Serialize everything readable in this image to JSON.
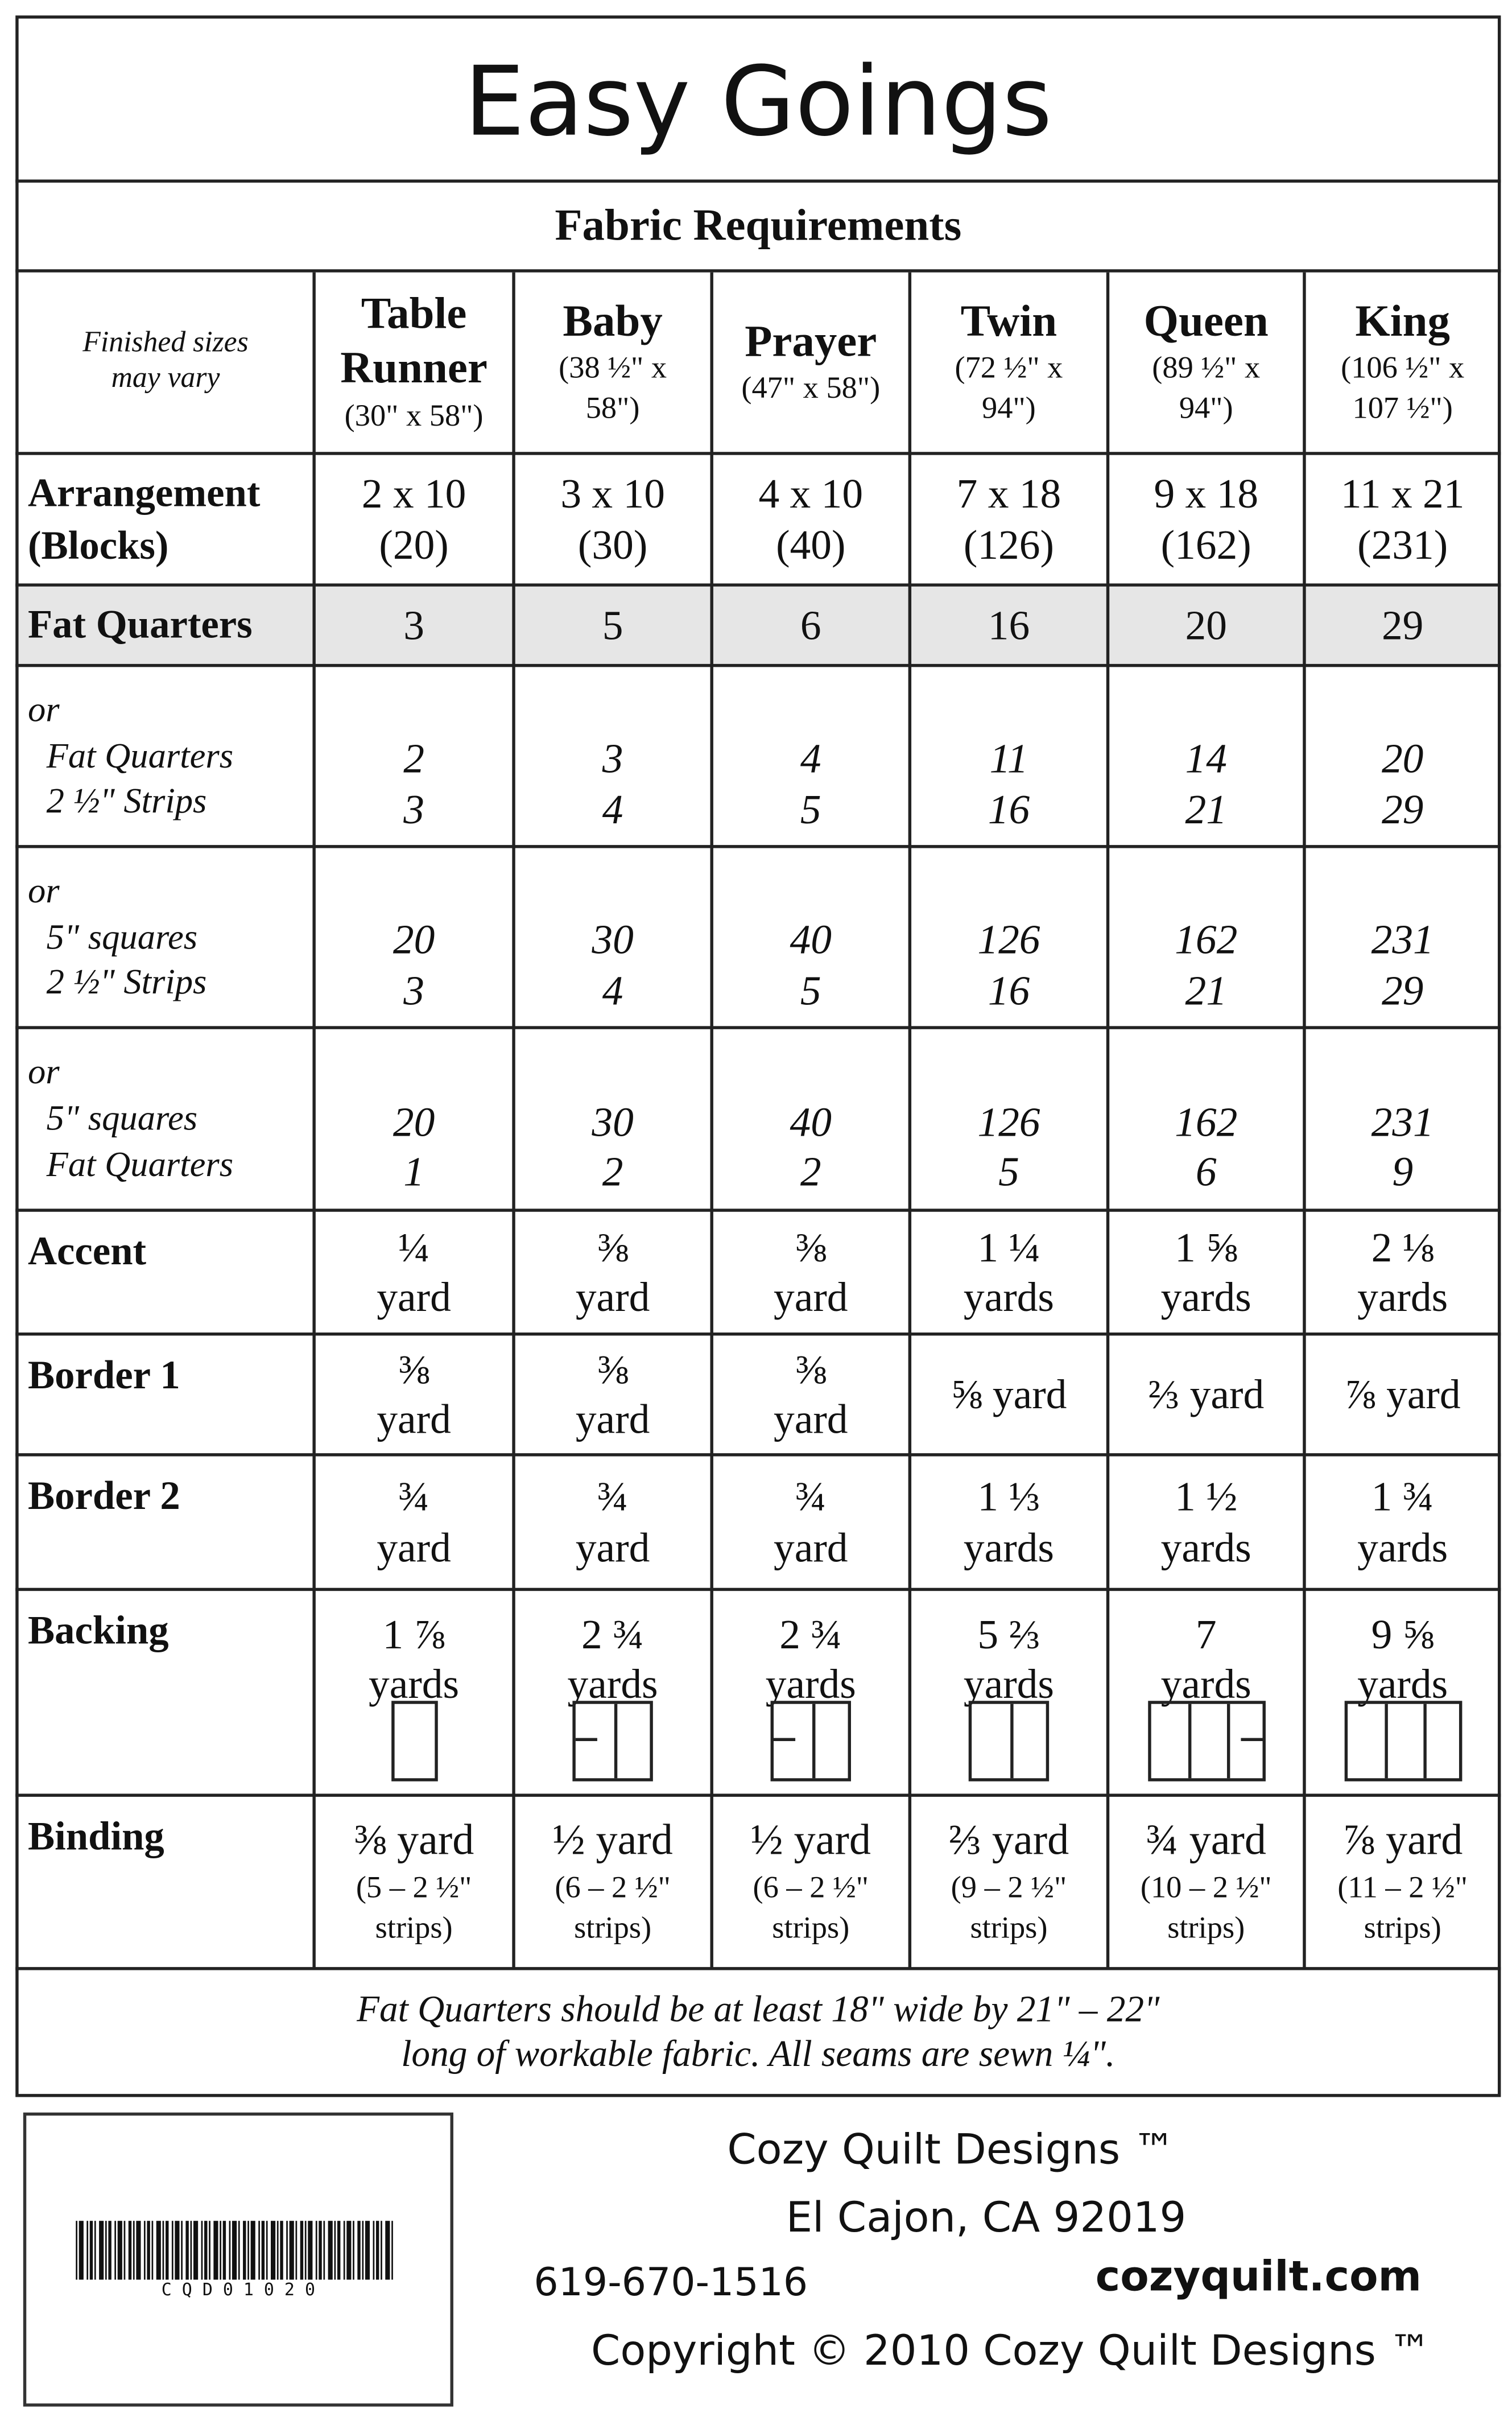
{
  "header": {
    "title": "Easy Goings",
    "subtitle": "Fabric Requirements"
  },
  "table": {
    "note": [
      "Finished sizes",
      "may vary"
    ],
    "columns": [
      {
        "name": [
          "Table",
          "Runner"
        ],
        "size": [
          "(30\" x 58\")"
        ]
      },
      {
        "name": [
          "Baby"
        ],
        "size": [
          "(38 ½\" x",
          "58\")"
        ]
      },
      {
        "name": [
          "Prayer"
        ],
        "size": [
          "(47\" x 58\")"
        ]
      },
      {
        "name": [
          "Twin"
        ],
        "size": [
          "(72 ½\" x",
          "94\")"
        ]
      },
      {
        "name": [
          "Queen"
        ],
        "size": [
          "(89 ½\" x",
          "94\")"
        ]
      },
      {
        "name": [
          "King"
        ],
        "size": [
          "(106 ½\" x",
          "107 ½\")"
        ]
      }
    ],
    "rows": [
      {
        "label": [
          "Arrangement",
          "(Blocks)"
        ],
        "cells": [
          [
            "2 x 10",
            "(20)"
          ],
          [
            "3 x 10",
            "(30)"
          ],
          [
            "4 x 10",
            "(40)"
          ],
          [
            "7 x 18",
            "(126)"
          ],
          [
            "9 x 18",
            "(162)"
          ],
          [
            "11 x 21",
            "(231)"
          ]
        ]
      },
      {
        "label": [
          "Fat Quarters"
        ],
        "cells": [
          [
            "3"
          ],
          [
            "5"
          ],
          [
            "6"
          ],
          [
            "16"
          ],
          [
            "20"
          ],
          [
            "29"
          ]
        ]
      },
      {
        "label": [
          "or",
          "Fat Quarters",
          "2 ½\" Strips"
        ],
        "cells": [
          [
            "2",
            "3"
          ],
          [
            "3",
            "4"
          ],
          [
            "4",
            "5"
          ],
          [
            "11",
            "16"
          ],
          [
            "14",
            "21"
          ],
          [
            "20",
            "29"
          ]
        ]
      },
      {
        "label": [
          "or",
          "5\" squares",
          "2 ½\" Strips"
        ],
        "cells": [
          [
            "20",
            "3"
          ],
          [
            "30",
            "4"
          ],
          [
            "40",
            "5"
          ],
          [
            "126",
            "16"
          ],
          [
            "162",
            "21"
          ],
          [
            "231",
            "29"
          ]
        ]
      },
      {
        "label": [
          "or",
          "5\" squares",
          "Fat Quarters"
        ],
        "cells": [
          [
            "20",
            "1"
          ],
          [
            "30",
            "2"
          ],
          [
            "40",
            "2"
          ],
          [
            "126",
            "5"
          ],
          [
            "162",
            "6"
          ],
          [
            "231",
            "9"
          ]
        ]
      },
      {
        "label": [
          "Accent"
        ],
        "cells": [
          [
            "¼",
            "yard"
          ],
          [
            "⅜",
            "yard"
          ],
          [
            "⅜",
            "yard"
          ],
          [
            "1 ¼",
            "yards"
          ],
          [
            "1 ⅝",
            "yards"
          ],
          [
            "2 ⅛",
            "yards"
          ]
        ]
      },
      {
        "label": [
          "Border 1"
        ],
        "cells": [
          [
            "⅜",
            "yard"
          ],
          [
            "⅜",
            "yard"
          ],
          [
            "⅜",
            "yard"
          ],
          [
            "⅝ yard"
          ],
          [
            "⅔ yard"
          ],
          [
            "⅞ yard"
          ]
        ]
      },
      {
        "label": [
          "Border 2"
        ],
        "cells": [
          [
            "¾",
            "yard"
          ],
          [
            "¾",
            "yard"
          ],
          [
            "¾",
            "yard"
          ],
          [
            "1 ⅓",
            "yards"
          ],
          [
            "1 ½",
            "yards"
          ],
          [
            "1 ¾",
            "yards"
          ]
        ]
      },
      {
        "label": [
          "Backing"
        ],
        "cells": [
          [
            "1 ⅞",
            "yards"
          ],
          [
            "2 ¾",
            "yards"
          ],
          [
            "2 ¾",
            "yards"
          ],
          [
            "5 ⅔",
            "yards"
          ],
          [
            "7",
            "yards"
          ],
          [
            "9 ⅝",
            "yards"
          ]
        ]
      },
      {
        "label": [
          "Binding"
        ],
        "cells": [
          [
            "⅜ yard",
            "(5 – 2 ½\"",
            "strips)"
          ],
          [
            "½ yard",
            "(6 – 2 ½\"",
            "strips)"
          ],
          [
            "½ yard",
            "(6 – 2 ½\"",
            "strips)"
          ],
          [
            "⅔ yard",
            "(9 – 2 ½\"",
            "strips)"
          ],
          [
            "¾ yard",
            "(10 – 2 ½\"",
            "strips)"
          ],
          [
            "⅞ yard",
            "(11 – 2 ½\"",
            "strips)"
          ]
        ]
      }
    ],
    "footnote": [
      "Fat Quarters should be at least 18\" wide by 21\" – 22\"",
      "long of workable fabric. All seams are sewn ¼\"."
    ]
  },
  "footer": {
    "barcode": "C Q D 0 1 0 2 0",
    "company": "Cozy Quilt Designs ™",
    "city": "El Cajon, CA 92019",
    "phone": "619-670-1516",
    "web": "cozyquilt.com",
    "copyright": "Copyright © 2010 Cozy Quilt Designs ™"
  }
}
